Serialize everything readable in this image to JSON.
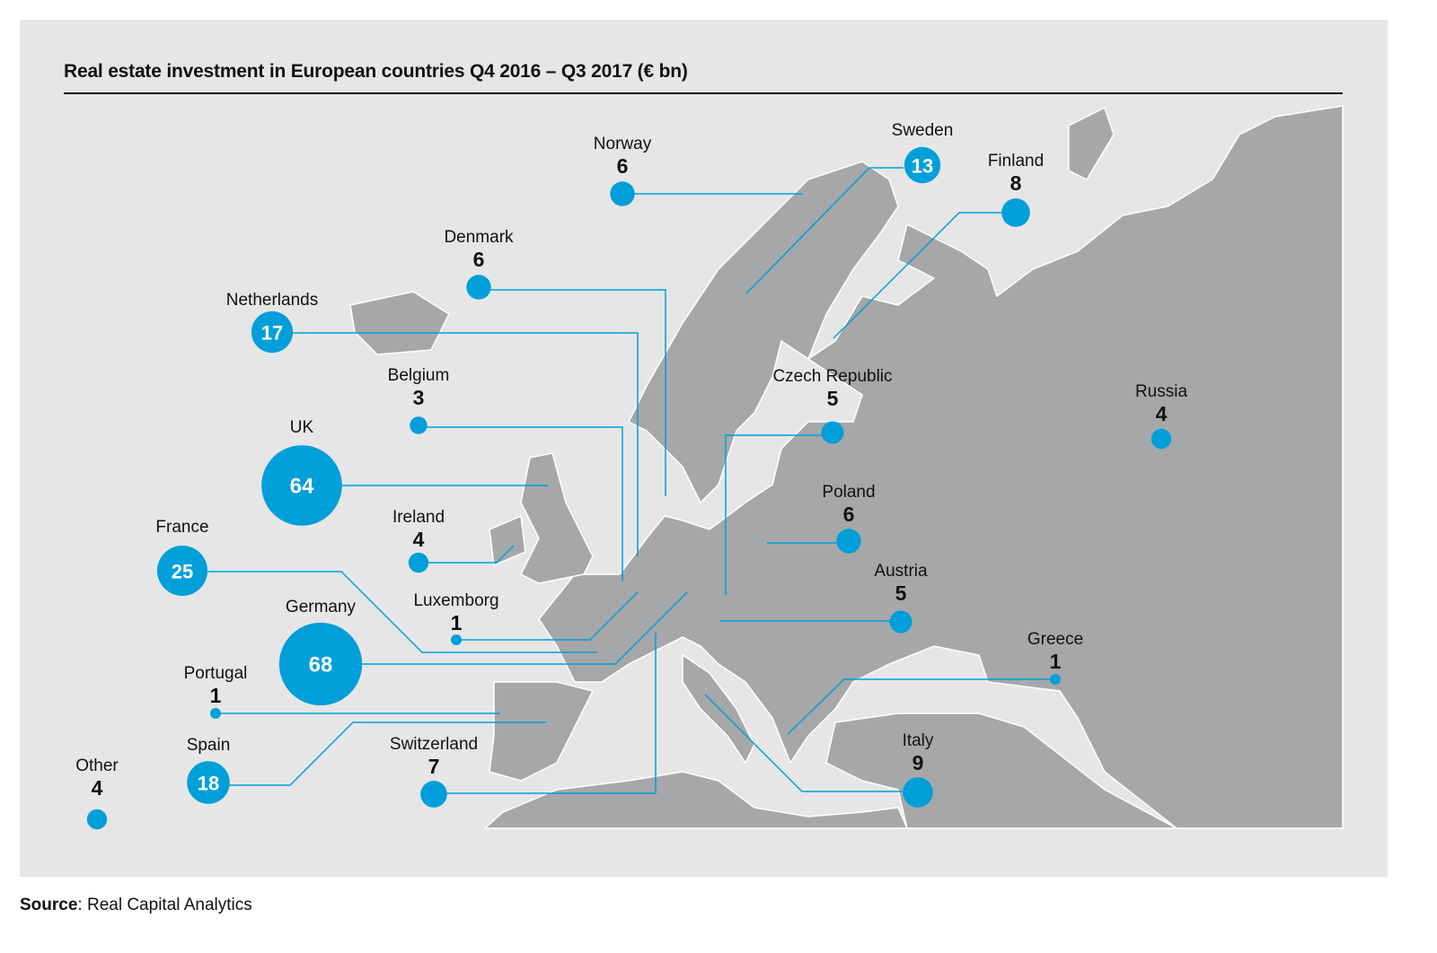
{
  "title": "Real estate investment in European countries Q4 2016 – Q3 2017 (€ bn)",
  "source": {
    "label": "Source",
    "text": ": Real Capital Analytics"
  },
  "colors": {
    "bubble": "#009fda",
    "land": "#a6a7a9",
    "background": "#e6e6e6",
    "line": "#009fda"
  },
  "unit": "€ bn",
  "countries": [
    {
      "name": "Norway",
      "value": 6
    },
    {
      "name": "Sweden",
      "value": 13
    },
    {
      "name": "Finland",
      "value": 8
    },
    {
      "name": "Denmark",
      "value": 6
    },
    {
      "name": "Netherlands",
      "value": 17
    },
    {
      "name": "Belgium",
      "value": 3
    },
    {
      "name": "UK",
      "value": 64
    },
    {
      "name": "Ireland",
      "value": 4
    },
    {
      "name": "France",
      "value": 25
    },
    {
      "name": "Luxemborg",
      "value": 1
    },
    {
      "name": "Germany",
      "value": 68
    },
    {
      "name": "Portugal",
      "value": 1
    },
    {
      "name": "Spain",
      "value": 18
    },
    {
      "name": "Switzerland",
      "value": 7
    },
    {
      "name": "Other",
      "value": 4
    },
    {
      "name": "Czech Republic",
      "value": 5
    },
    {
      "name": "Poland",
      "value": 6
    },
    {
      "name": "Austria",
      "value": 5
    },
    {
      "name": "Russia",
      "value": 4
    },
    {
      "name": "Greece",
      "value": 1
    },
    {
      "name": "Italy",
      "value": 9
    }
  ]
}
